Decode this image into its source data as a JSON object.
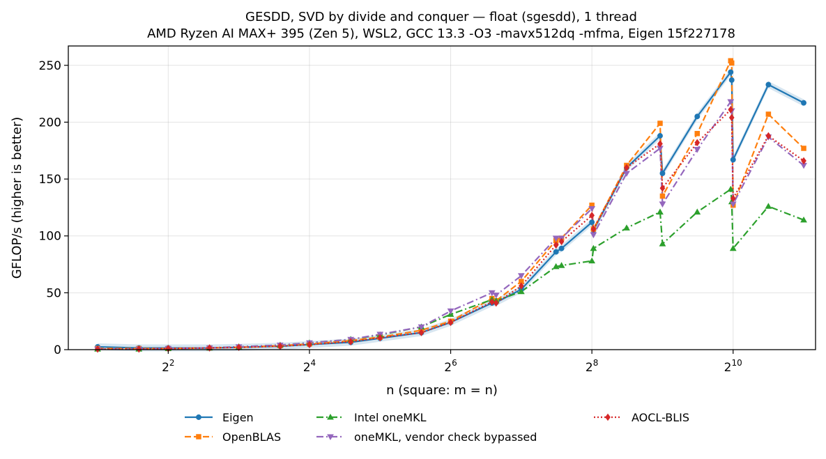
{
  "chart_data": {
    "type": "line",
    "title": "GESDD, SVD by divide and conquer — float (sgesdd), 1 thread",
    "subtitle": "AMD Ryzen AI MAX+ 395 (Zen 5), WSL2, GCC 13.3 -O3 -mavx512dq -mfma, Eigen 15f227178",
    "xlabel": "n (square: m = n)",
    "ylabel": "GFLOP/s (higher is better)",
    "x_scale": "log2",
    "xlim": [
      1.5,
      2300
    ],
    "ylim": [
      0,
      267
    ],
    "grid": true,
    "legend_position": "bottom-center",
    "x_ticks": [
      {
        "value": 4,
        "base": "2",
        "exp": "2"
      },
      {
        "value": 16,
        "base": "2",
        "exp": "4"
      },
      {
        "value": 64,
        "base": "2",
        "exp": "6"
      },
      {
        "value": 256,
        "base": "2",
        "exp": "8"
      },
      {
        "value": 1024,
        "base": "2",
        "exp": "10"
      }
    ],
    "y_ticks": [
      0,
      50,
      100,
      150,
      200,
      250
    ],
    "series": [
      {
        "name": "Eigen",
        "color": "#1f77b4",
        "marker": "circle",
        "dash": "solid",
        "band": true,
        "points": [
          [
            2,
            2.5
          ],
          [
            3,
            1.5
          ],
          [
            4,
            1.5
          ],
          [
            6,
            1.5
          ],
          [
            8,
            2
          ],
          [
            12,
            3
          ],
          [
            16,
            4.5
          ],
          [
            24,
            6.5
          ],
          [
            32,
            10
          ],
          [
            48,
            15
          ],
          [
            64,
            24
          ],
          [
            96,
            41
          ],
          [
            100,
            41.5
          ],
          [
            128,
            53
          ],
          [
            180,
            86
          ],
          [
            190,
            89
          ],
          [
            256,
            112
          ],
          [
            260,
            105
          ],
          [
            360,
            160
          ],
          [
            500,
            188
          ],
          [
            512,
            155
          ],
          [
            720,
            205
          ],
          [
            1000,
            244
          ],
          [
            1010,
            237
          ],
          [
            1024,
            167
          ],
          [
            1448,
            233
          ],
          [
            2048,
            217
          ]
        ]
      },
      {
        "name": "OpenBLAS",
        "color": "#ff7f0e",
        "marker": "square",
        "dash": "dashed",
        "band": false,
        "points": [
          [
            2,
            1
          ],
          [
            3,
            1
          ],
          [
            4,
            1
          ],
          [
            6,
            1.5
          ],
          [
            8,
            2
          ],
          [
            12,
            3.5
          ],
          [
            16,
            5
          ],
          [
            24,
            8
          ],
          [
            32,
            11
          ],
          [
            48,
            17
          ],
          [
            64,
            25
          ],
          [
            96,
            45
          ],
          [
            100,
            43
          ],
          [
            128,
            60
          ],
          [
            180,
            96
          ],
          [
            190,
            98
          ],
          [
            256,
            127
          ],
          [
            260,
            106
          ],
          [
            360,
            162
          ],
          [
            500,
            199
          ],
          [
            512,
            135
          ],
          [
            720,
            190
          ],
          [
            1000,
            254
          ],
          [
            1010,
            252
          ],
          [
            1024,
            127
          ],
          [
            1448,
            207
          ],
          [
            2048,
            177
          ]
        ]
      },
      {
        "name": "Intel oneMKL",
        "color": "#2ca02c",
        "marker": "triangle-up",
        "dash": "dashdot",
        "band": false,
        "points": [
          [
            2,
            0.5
          ],
          [
            3,
            0.5
          ],
          [
            4,
            1
          ],
          [
            6,
            1.5
          ],
          [
            8,
            2.5
          ],
          [
            12,
            4
          ],
          [
            16,
            6
          ],
          [
            24,
            9
          ],
          [
            32,
            13
          ],
          [
            48,
            20
          ],
          [
            64,
            31
          ],
          [
            96,
            44
          ],
          [
            100,
            43
          ],
          [
            128,
            51
          ],
          [
            180,
            73
          ],
          [
            190,
            74
          ],
          [
            256,
            78
          ],
          [
            260,
            89
          ],
          [
            360,
            107
          ],
          [
            500,
            121
          ],
          [
            512,
            93
          ],
          [
            720,
            121
          ],
          [
            1000,
            141
          ],
          [
            1010,
            130
          ],
          [
            1024,
            89
          ],
          [
            1448,
            126
          ],
          [
            2048,
            114
          ]
        ]
      },
      {
        "name": "oneMKL, vendor check bypassed",
        "color": "#9467bd",
        "marker": "triangle-down",
        "dash": "dashdot",
        "band": false,
        "points": [
          [
            2,
            0.5
          ],
          [
            3,
            0.5
          ],
          [
            4,
            1
          ],
          [
            6,
            1.5
          ],
          [
            8,
            2.5
          ],
          [
            12,
            4
          ],
          [
            16,
            6
          ],
          [
            24,
            9
          ],
          [
            32,
            13.5
          ],
          [
            48,
            20
          ],
          [
            64,
            34
          ],
          [
            96,
            50
          ],
          [
            100,
            48
          ],
          [
            128,
            65
          ],
          [
            180,
            98
          ],
          [
            190,
            98
          ],
          [
            256,
            124
          ],
          [
            260,
            101
          ],
          [
            360,
            155
          ],
          [
            500,
            177
          ],
          [
            512,
            128
          ],
          [
            720,
            176
          ],
          [
            1000,
            218
          ],
          [
            1010,
            210
          ],
          [
            1024,
            128
          ],
          [
            1448,
            187
          ],
          [
            2048,
            162
          ]
        ]
      },
      {
        "name": "AOCL-BLIS",
        "color": "#d62728",
        "marker": "diamond",
        "dash": "dotted",
        "band": false,
        "points": [
          [
            2,
            0.5
          ],
          [
            3,
            0.5
          ],
          [
            4,
            1
          ],
          [
            6,
            1.5
          ],
          [
            8,
            2
          ],
          [
            12,
            3
          ],
          [
            16,
            4.5
          ],
          [
            24,
            7
          ],
          [
            32,
            10.5
          ],
          [
            48,
            15
          ],
          [
            64,
            24
          ],
          [
            96,
            42
          ],
          [
            100,
            41
          ],
          [
            128,
            56
          ],
          [
            180,
            92
          ],
          [
            190,
            95
          ],
          [
            256,
            118
          ],
          [
            260,
            106
          ],
          [
            360,
            160
          ],
          [
            500,
            181
          ],
          [
            512,
            142
          ],
          [
            720,
            182
          ],
          [
            1000,
            211
          ],
          [
            1010,
            204
          ],
          [
            1024,
            133
          ],
          [
            1448,
            188
          ],
          [
            2048,
            166
          ]
        ]
      }
    ]
  }
}
